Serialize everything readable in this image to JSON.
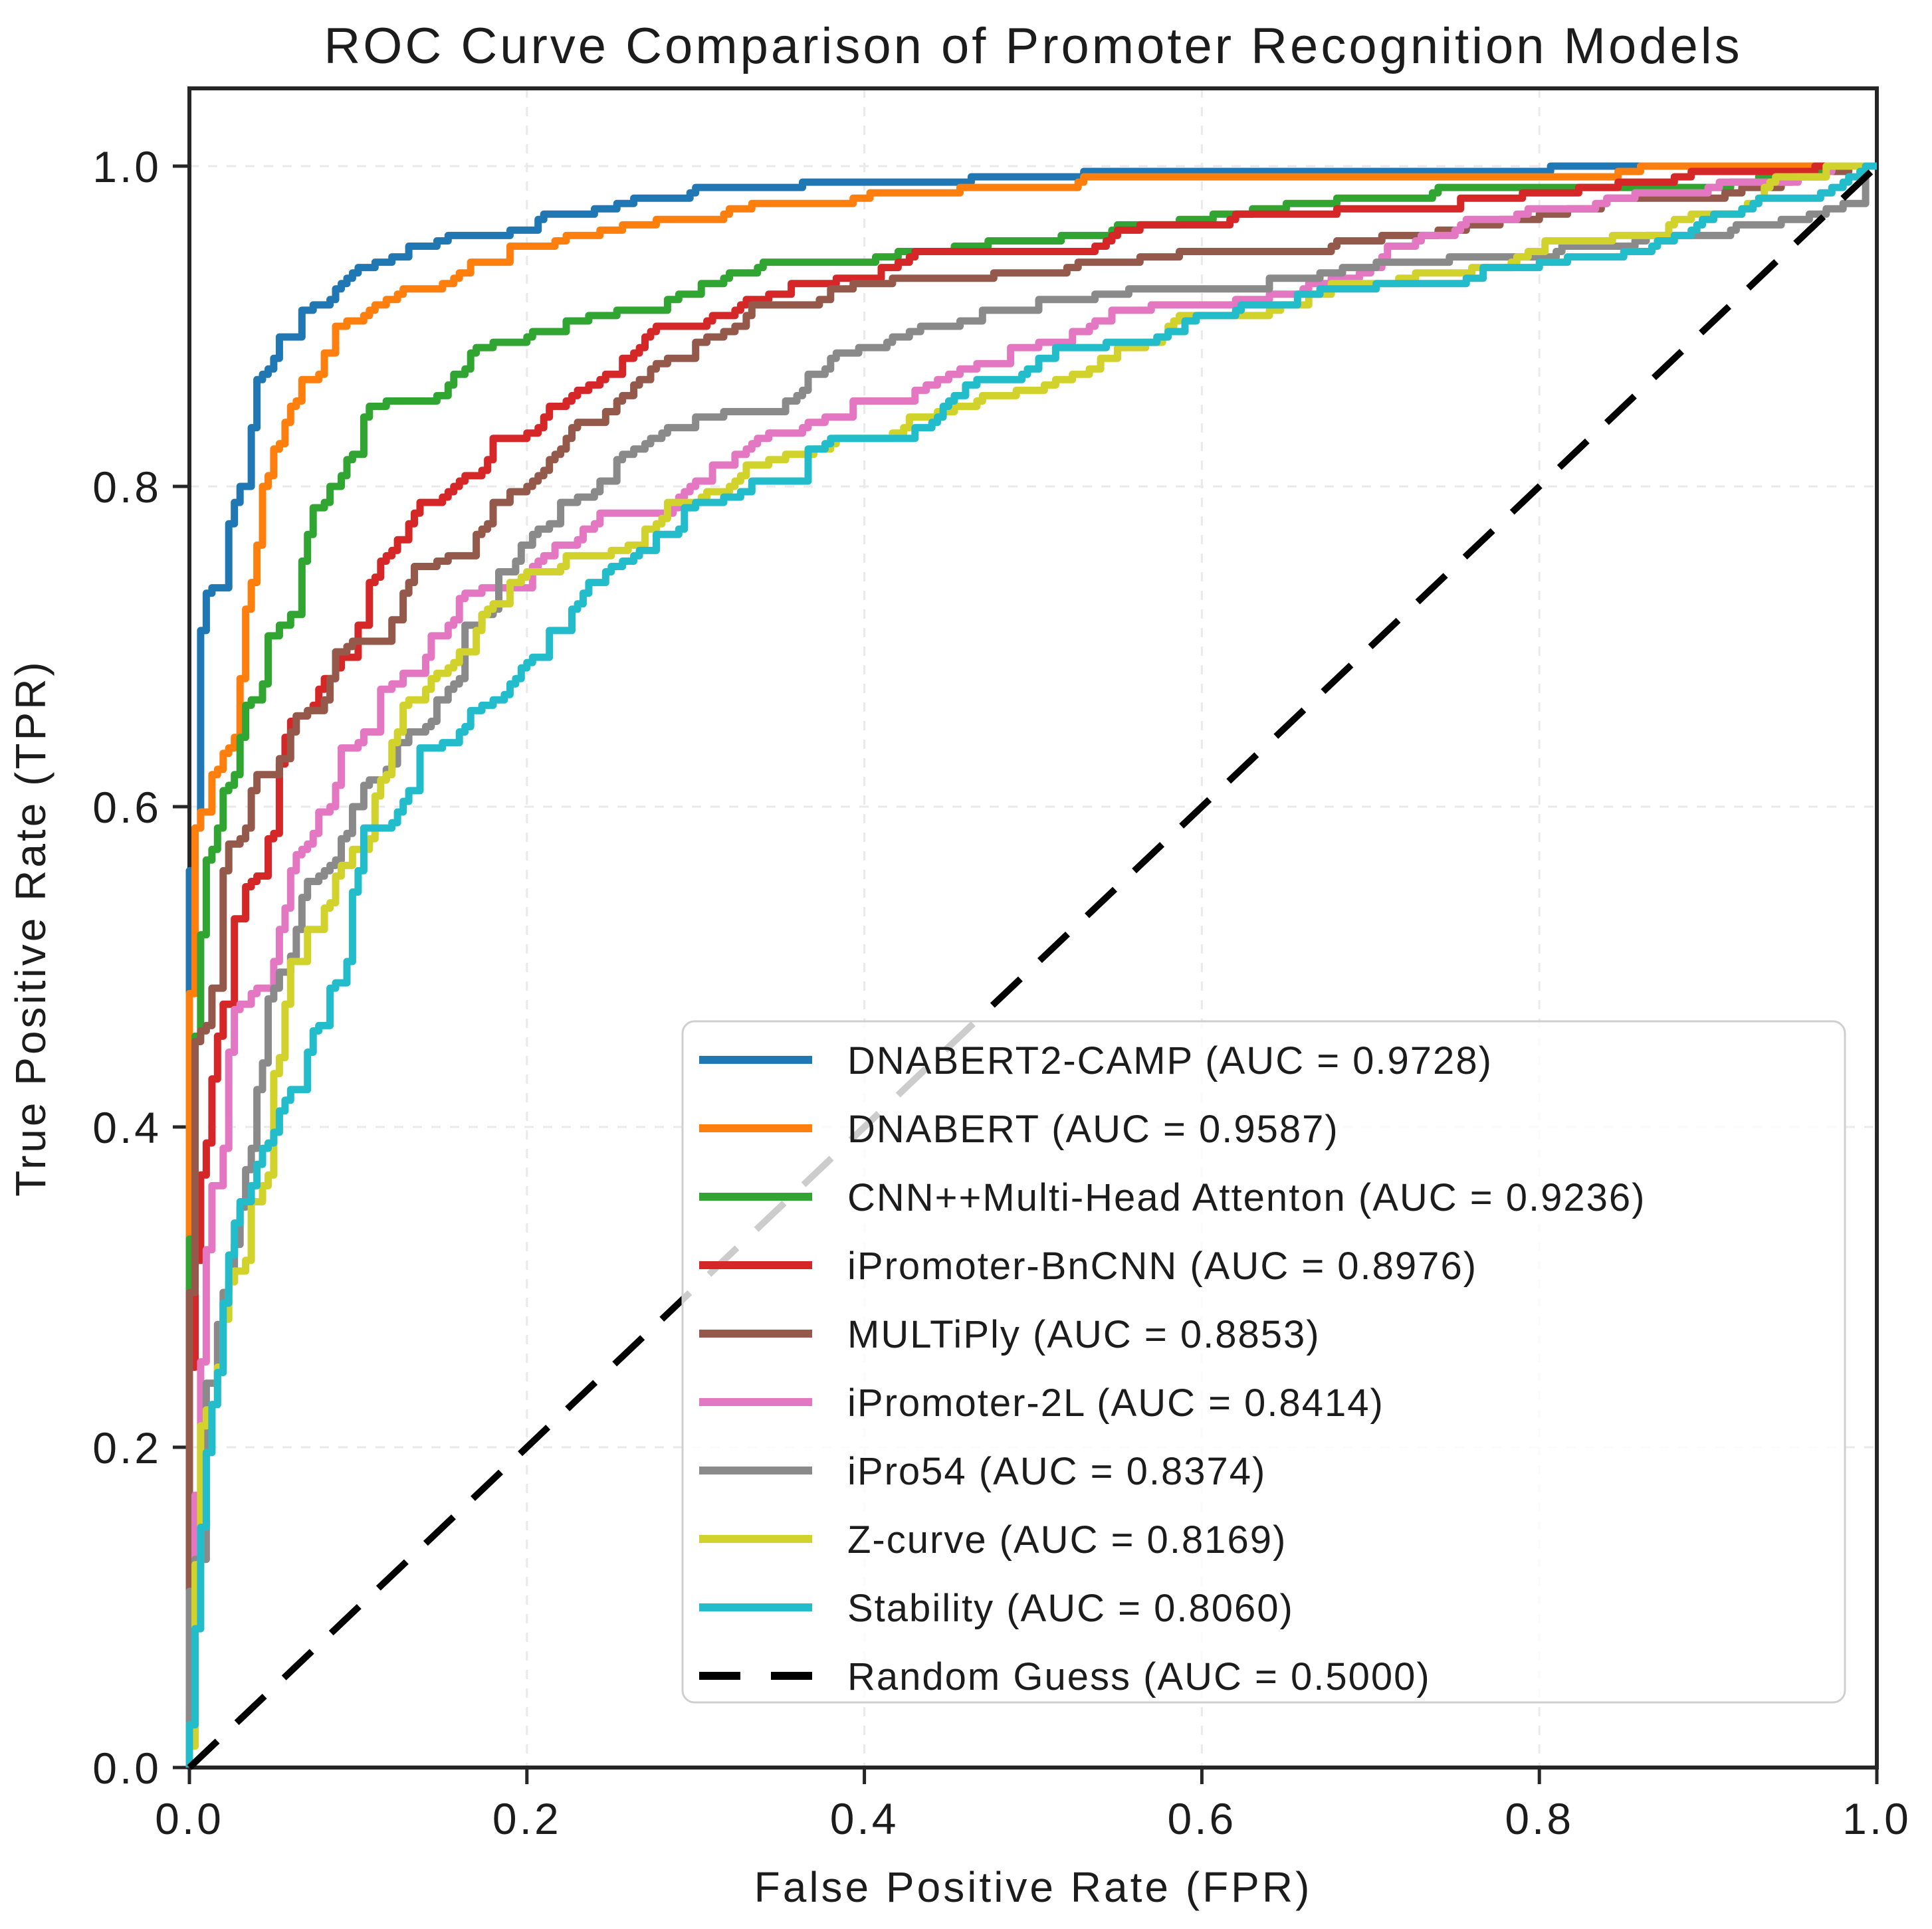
{
  "chart_data": {
    "type": "line",
    "subtype": "roc-curves",
    "title": "ROC Curve Comparison of Promoter Recognition Models",
    "xlabel": "False Positive Rate (FPR)",
    "ylabel": "True Positive Rate (TPR)",
    "xlim": [
      0.0,
      1.0
    ],
    "ylim": [
      0.0,
      1.05
    ],
    "xticks": [
      "0.0",
      "0.2",
      "0.4",
      "0.6",
      "0.8",
      "1.0"
    ],
    "yticks": [
      "0.0",
      "0.2",
      "0.4",
      "0.6",
      "0.8",
      "1.0"
    ],
    "grid": true,
    "legend_position": "lower right",
    "series": [
      {
        "name": "DNABERT2-CAMP",
        "auc": 0.9728,
        "color": "#1f77b4",
        "style": "solid",
        "legend_label": "DNABERT2-CAMP (AUC = 0.9728)"
      },
      {
        "name": "DNABERT",
        "auc": 0.9587,
        "color": "#ff7f0e",
        "style": "solid",
        "legend_label": "DNABERT (AUC = 0.9587)"
      },
      {
        "name": "CNN++Multi-Head Attenton",
        "auc": 0.9236,
        "color": "#31a532",
        "style": "solid",
        "legend_label": "CNN++Multi-Head Attenton (AUC = 0.9236)"
      },
      {
        "name": "iPromoter-BnCNN",
        "auc": 0.8976,
        "color": "#d62728",
        "style": "solid",
        "legend_label": "iPromoter-BnCNN (AUC = 0.8976)"
      },
      {
        "name": "MULTiPly",
        "auc": 0.8853,
        "color": "#94594a",
        "style": "solid",
        "legend_label": "MULTiPly (AUC = 0.8853)"
      },
      {
        "name": "iPromoter-2L",
        "auc": 0.8414,
        "color": "#e377c2",
        "style": "solid",
        "legend_label": "iPromoter-2L (AUC = 0.8414)"
      },
      {
        "name": "iPro54",
        "auc": 0.8374,
        "color": "#8a8a8a",
        "style": "solid",
        "legend_label": "iPro54 (AUC = 0.8374)"
      },
      {
        "name": "Z-curve",
        "auc": 0.8169,
        "color": "#d2d22d",
        "style": "solid",
        "legend_label": "Z-curve (AUC = 0.8169)"
      },
      {
        "name": "Stability",
        "auc": 0.806,
        "color": "#23bccb",
        "style": "solid",
        "legend_label": "Stability (AUC = 0.8060)"
      },
      {
        "name": "Random Guess",
        "auc": 0.5,
        "color": "#000000",
        "style": "dashed",
        "legend_label": "Random Guess (AUC = 0.5000)"
      }
    ]
  }
}
